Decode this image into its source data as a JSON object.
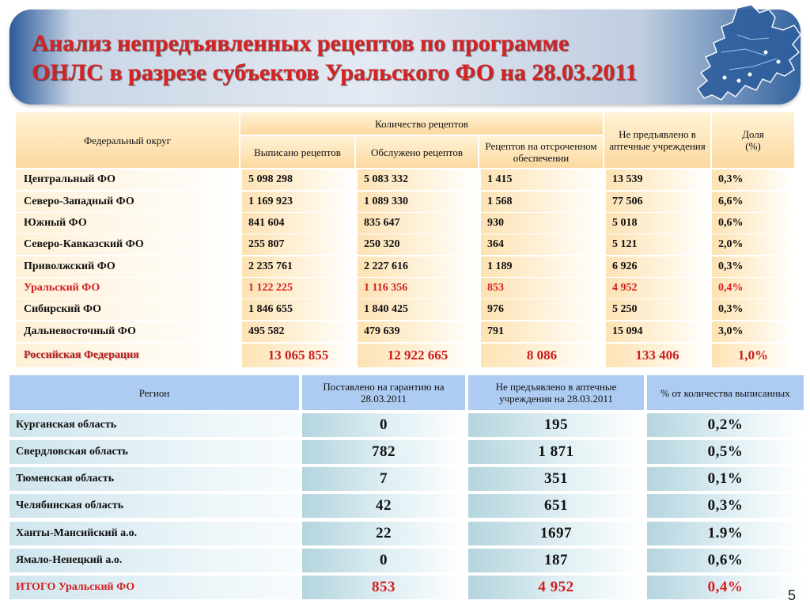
{
  "title": {
    "line1": "Анализ непредъявленных рецептов по программе",
    "line2": "ОНЛС в разрезе субъектов Уральского ФО на 28.03.2011"
  },
  "map": {
    "icon": "ural-federal-district-map",
    "fill": "#2f5f9e"
  },
  "table_federal": {
    "headers": {
      "district": "Федеральный округ",
      "group": "Количество рецептов",
      "issued": "Выписано рецептов",
      "served": "Обслужено рецептов",
      "deferred": "Рецептов на отсроченном обеспечении",
      "not_presented": "Не предъявлено в аптечные учреждения",
      "share_line1": "Доля",
      "share_line2": "(%)"
    },
    "rows": [
      {
        "name": "Центральный ФО",
        "issued": "5 098 298",
        "served": "5 083 332",
        "deferred": "1 415",
        "not_presented": "13 539",
        "share": "0,3%"
      },
      {
        "name": "Северо-Западный ФО",
        "issued": "1 169 923",
        "served": "1 089 330",
        "deferred": "1 568",
        "not_presented": "77 506",
        "share": "6,6%"
      },
      {
        "name": "Южный ФО",
        "issued": "841 604",
        "served": "835 647",
        "deferred": "930",
        "not_presented": "5 018",
        "share": "0,6%"
      },
      {
        "name": "Северо-Кавказский ФО",
        "issued": "255 807",
        "served": "250 320",
        "deferred": "364",
        "not_presented": "5 121",
        "share": "2,0%"
      },
      {
        "name": "Приволжский ФО",
        "issued": "2 235 761",
        "served": "2 227 616",
        "deferred": "1 189",
        "not_presented": "6 926",
        "share": "0,3%"
      },
      {
        "name": "Уральский ФО",
        "issued": "1 122 225",
        "served": "1 116 356",
        "deferred": "853",
        "not_presented": "4 952",
        "share": "0,4%"
      },
      {
        "name": "Сибирский ФО",
        "issued": "1 846 655",
        "served": "1 840 425",
        "deferred": "976",
        "not_presented": "5 250",
        "share": "0,3%"
      },
      {
        "name": "Дальневосточный ФО",
        "issued": "495 582",
        "served": "479 639",
        "deferred": "791",
        "not_presented": "15 094",
        "share": "3,0%"
      }
    ],
    "total": {
      "name": "Российская Федерация",
      "issued": "13 065 855",
      "served": "12 922 665",
      "deferred": "8 086",
      "not_presented": "133 406",
      "share": "1,0%"
    }
  },
  "table_regions": {
    "headers": {
      "region": "Регион",
      "guarantee": "Поставлено на гарантию на 28.03.2011",
      "not_presented": "Не предъявлено в аптечные учреждения на 28.03.2011",
      "percent": "% от количества выписанных"
    },
    "rows": [
      {
        "name": "Курганская область",
        "guarantee": "0",
        "not_presented": "195",
        "percent": "0,2%"
      },
      {
        "name": "Свердловская область",
        "guarantee": "782",
        "not_presented": "1 871",
        "percent": "0,5%"
      },
      {
        "name": "Тюменская область",
        "guarantee": "7",
        "not_presented": "351",
        "percent": "0,1%"
      },
      {
        "name": "Челябинская область",
        "guarantee": "42",
        "not_presented": "651",
        "percent": "0,3%"
      },
      {
        "name": "Ханты-Мансийский а.о.",
        "guarantee": "22",
        "not_presented": "1697",
        "percent": "1.9%"
      },
      {
        "name": "Ямало-Ненецкий а.о.",
        "guarantee": "0",
        "not_presented": "187",
        "percent": "0,6%"
      }
    ],
    "total": {
      "name": "ИТОГО Уральский ФО",
      "guarantee": "853",
      "not_presented": "4 952",
      "percent": "0,4%"
    }
  },
  "colors": {
    "accent_red": "#d31f1f",
    "header_orange": "#fcd8a0",
    "header_blue": "#aeccf2"
  },
  "page_number": "5"
}
